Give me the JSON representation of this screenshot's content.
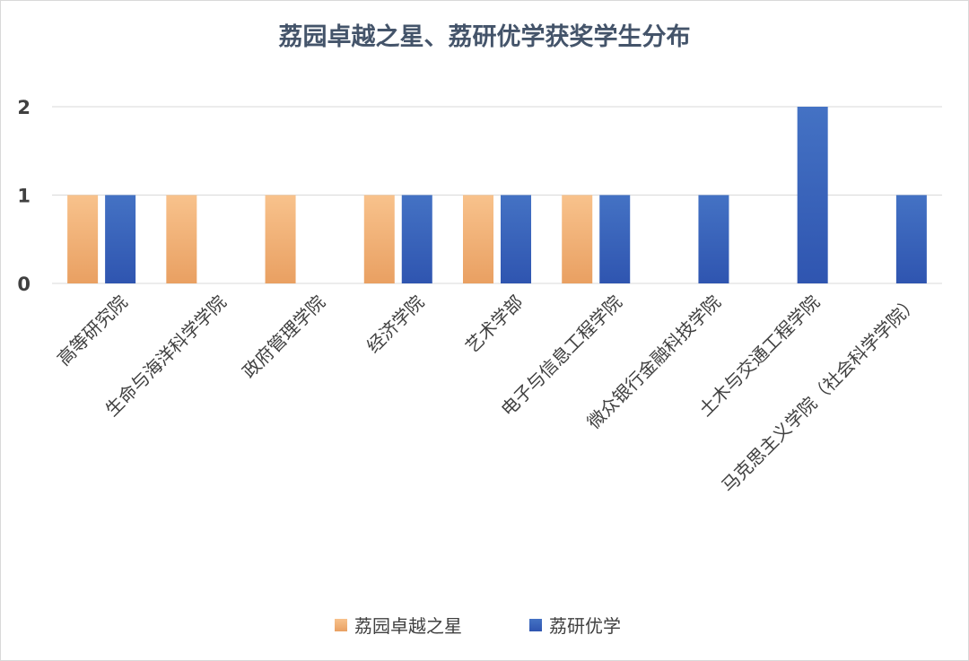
{
  "chart_data": {
    "type": "bar",
    "title": "荔园卓越之星、荔研优学获奖学生分布",
    "categories": [
      "高等研究院",
      "生命与海洋科学学院",
      "政府管理学院",
      "经济学院",
      "艺术学部",
      "电子与信息工程学院",
      "微众银行金融科技学院",
      "土木与交通工程学院",
      "马克思主义学院（社会科学学院）"
    ],
    "series": [
      {
        "name": "荔园卓越之星",
        "values": [
          1,
          1,
          1,
          1,
          1,
          1,
          0,
          0,
          0
        ],
        "color_top": "#f8c28c",
        "color_bottom": "#e9a062"
      },
      {
        "name": "荔研优学",
        "values": [
          1,
          0,
          0,
          1,
          1,
          1,
          1,
          2,
          1
        ],
        "color_top": "#4472c4",
        "color_bottom": "#2f55b0"
      }
    ],
    "ylim": [
      0,
      2
    ],
    "yticks": [
      0,
      1,
      2
    ],
    "xlabel": "",
    "ylabel": "",
    "grid": true,
    "legend_position": "bottom"
  }
}
